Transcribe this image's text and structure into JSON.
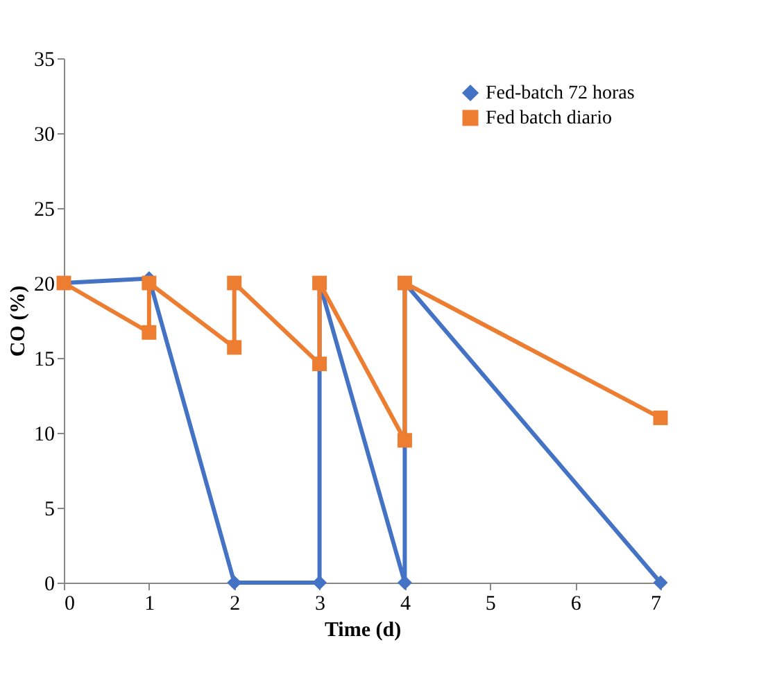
{
  "chart_data": {
    "type": "line",
    "xlabel": "Time (d)",
    "ylabel": "CO (%)",
    "xlim": [
      0,
      7
    ],
    "xticks": [
      0,
      1,
      2,
      3,
      4,
      5,
      6,
      7
    ],
    "ylim": [
      0,
      35
    ],
    "yticks": [
      0,
      5,
      10,
      15,
      20,
      25,
      30,
      35
    ],
    "grid": false,
    "legend": "top right",
    "line_style": "solid",
    "series": [
      {
        "name": "Fed-batch 72 horas",
        "color": "#4472c4",
        "marker": "diamond",
        "x": [
          0,
          1,
          2,
          3,
          3,
          4,
          4,
          7
        ],
        "values": [
          20,
          20.3,
          0,
          0,
          20,
          0,
          20,
          0
        ]
      },
      {
        "name": "Fed batch diario",
        "color": "#ed7d31",
        "marker": "square",
        "x": [
          0,
          1,
          1,
          2,
          2,
          3,
          3,
          4,
          4,
          7
        ],
        "values": [
          20,
          16.7,
          20,
          15.7,
          20,
          14.6,
          20,
          9.5,
          20,
          11
        ]
      }
    ]
  }
}
